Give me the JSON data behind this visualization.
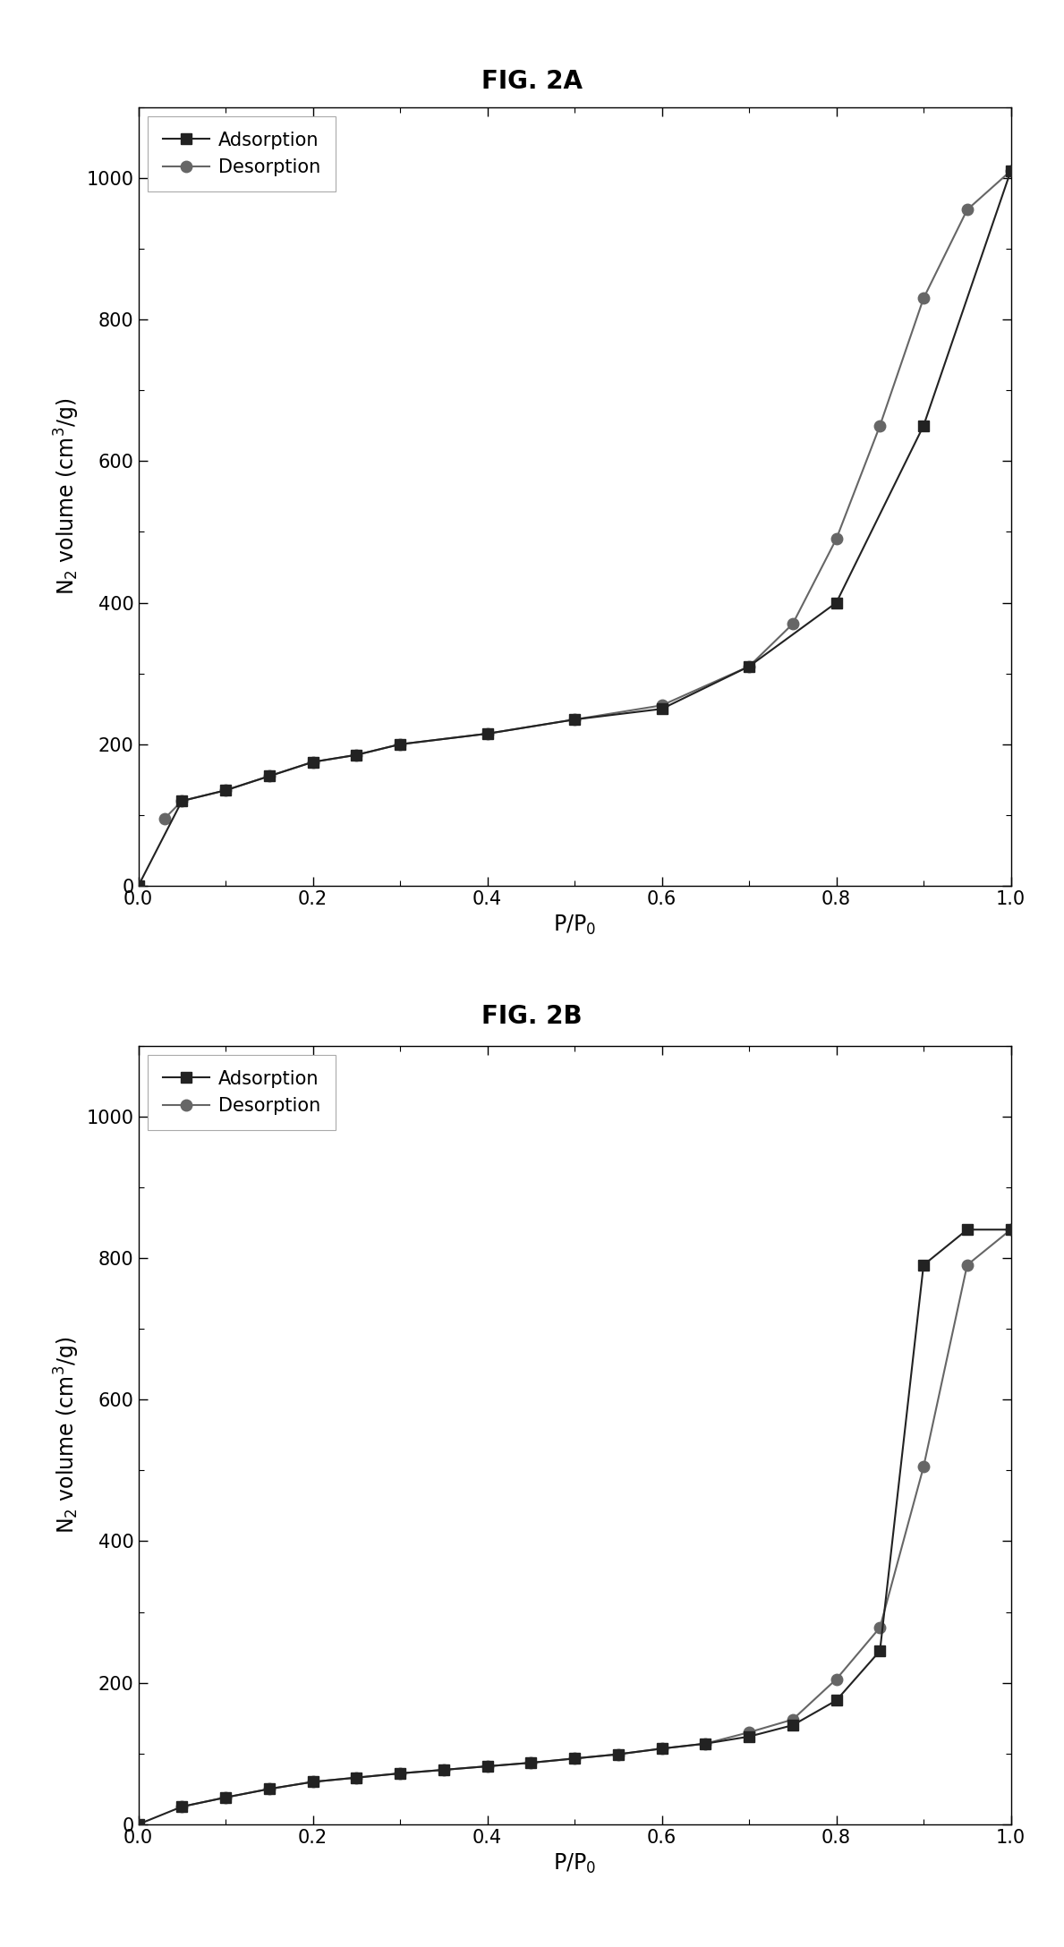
{
  "fig2a": {
    "title": "FIG. 2A",
    "adsorption_x": [
      0.0,
      0.05,
      0.1,
      0.15,
      0.2,
      0.25,
      0.3,
      0.4,
      0.5,
      0.6,
      0.7,
      0.8,
      0.9,
      1.0
    ],
    "adsorption_y": [
      0.0,
      120,
      135,
      155,
      175,
      185,
      200,
      215,
      235,
      250,
      310,
      400,
      650,
      1010
    ],
    "desorption_x": [
      0.03,
      0.05,
      0.1,
      0.15,
      0.2,
      0.25,
      0.3,
      0.4,
      0.5,
      0.6,
      0.7,
      0.75,
      0.8,
      0.85,
      0.9,
      0.95,
      1.0
    ],
    "desorption_y": [
      95,
      120,
      135,
      155,
      175,
      185,
      200,
      215,
      235,
      255,
      310,
      370,
      490,
      650,
      830,
      955,
      1010
    ],
    "xlabel": "P/P$_0$",
    "ylabel": "N$_2$ volume (cm$^3$/g)",
    "xlim": [
      0.0,
      1.0
    ],
    "ylim": [
      0,
      1100
    ],
    "yticks": [
      0,
      200,
      400,
      600,
      800,
      1000
    ],
    "xticks": [
      0.0,
      0.2,
      0.4,
      0.6,
      0.8,
      1.0
    ]
  },
  "fig2b": {
    "title": "FIG. 2B",
    "adsorption_x": [
      0.0,
      0.05,
      0.1,
      0.15,
      0.2,
      0.25,
      0.3,
      0.35,
      0.4,
      0.45,
      0.5,
      0.55,
      0.6,
      0.65,
      0.7,
      0.75,
      0.8,
      0.85,
      0.9,
      0.95,
      1.0
    ],
    "adsorption_y": [
      0.0,
      25,
      38,
      50,
      60,
      66,
      72,
      77,
      82,
      87,
      93,
      99,
      107,
      114,
      124,
      140,
      175,
      245,
      790,
      840,
      840
    ],
    "desorption_x": [
      0.05,
      0.1,
      0.15,
      0.2,
      0.25,
      0.3,
      0.35,
      0.4,
      0.45,
      0.5,
      0.55,
      0.6,
      0.65,
      0.7,
      0.75,
      0.8,
      0.85,
      0.9,
      0.95,
      1.0
    ],
    "desorption_y": [
      25,
      38,
      50,
      60,
      66,
      72,
      77,
      82,
      87,
      93,
      99,
      107,
      114,
      130,
      148,
      205,
      278,
      505,
      790,
      840
    ],
    "xlabel": "P/P$_0$",
    "ylabel": "N$_2$ volume (cm$^3$/g)",
    "xlim": [
      0.0,
      1.0
    ],
    "ylim": [
      0,
      1100
    ],
    "yticks": [
      0,
      200,
      400,
      600,
      800,
      1000
    ],
    "xticks": [
      0.0,
      0.2,
      0.4,
      0.6,
      0.8,
      1.0
    ]
  },
  "adsorption_color": "#222222",
  "desorption_color": "#666666",
  "adsorption_label": "Adsorption",
  "desorption_label": "Desorption",
  "adsorption_marker": "s",
  "desorption_marker": "o",
  "linewidth": 1.5,
  "markersize": 9,
  "background_color": "#ffffff",
  "title_fontsize": 20,
  "label_fontsize": 17,
  "tick_fontsize": 15,
  "legend_fontsize": 15
}
